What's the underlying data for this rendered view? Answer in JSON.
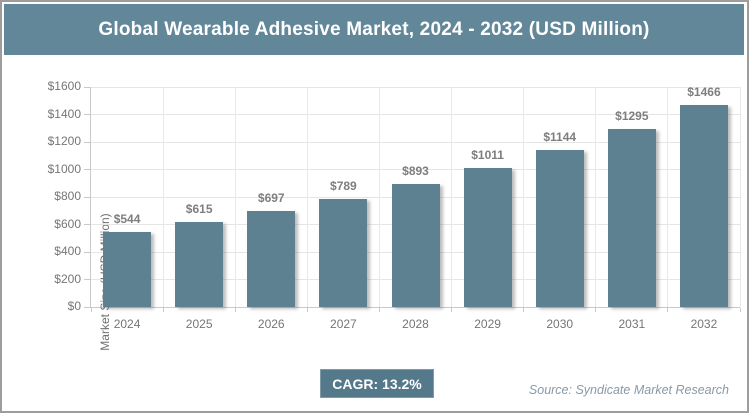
{
  "header": {
    "title": "Global Wearable Adhesive Market, 2024 - 2032 (USD Million)"
  },
  "chart_data": {
    "type": "bar",
    "title": "Global Wearable Adhesive Market, 2024 - 2032 (USD Million)",
    "categories": [
      "2024",
      "2025",
      "2026",
      "2027",
      "2028",
      "2029",
      "2030",
      "2031",
      "2032"
    ],
    "values": [
      544,
      615,
      697,
      789,
      893,
      1011,
      1144,
      1295,
      1466
    ],
    "value_labels": [
      "$544",
      "$615",
      "$697",
      "$789",
      "$893",
      "$1011",
      "$1144",
      "$1295",
      "$1466"
    ],
    "xlabel": "",
    "ylabel": "Market Size (USD Million)",
    "ylim": [
      0,
      1600
    ],
    "ytick_step": 200,
    "ytick_labels": [
      "$0",
      "$200",
      "$400",
      "$600",
      "$800",
      "$1000",
      "$1200",
      "$1400",
      "$1600"
    ],
    "grid": true,
    "legend": "none",
    "bar_color": "#5d8191"
  },
  "footer": {
    "cagr_label": "CAGR: 13.2%",
    "source": "Source: Syndicate Market Research"
  },
  "colors": {
    "title_band_bg": "#618799",
    "bar_fill": "#5d8191",
    "cagr_badge_bg": "#54798b",
    "frame_border": "#9d9d9d",
    "gridline": "#e5e5e5",
    "axis_line": "#c9c9c9",
    "tick_text": "#767676",
    "value_text": "#7e7e7e",
    "source_text": "#8899a8",
    "title_text": "#ffffff"
  }
}
